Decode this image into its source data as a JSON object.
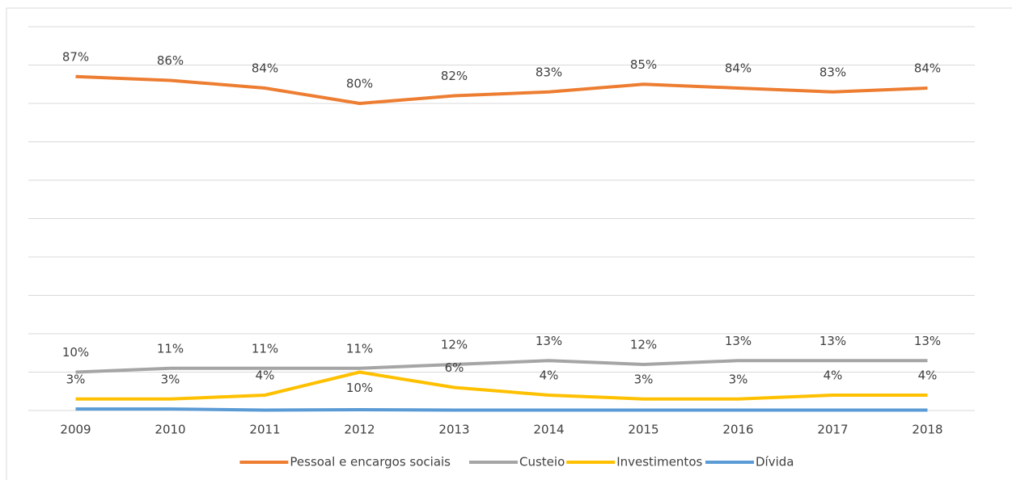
{
  "chart_data": {
    "type": "line",
    "categories": [
      "2009",
      "2010",
      "2011",
      "2012",
      "2013",
      "2014",
      "2015",
      "2016",
      "2017",
      "2018"
    ],
    "series": [
      {
        "name": "Pessoal e encargos sociais",
        "color": "#ED7D31",
        "values": [
          87,
          86,
          84,
          80,
          82,
          83,
          85,
          84,
          83,
          84
        ],
        "value_labels": [
          "87%",
          "86%",
          "84%",
          "80%",
          "82%",
          "83%",
          "85%",
          "84%",
          "83%",
          "84%"
        ]
      },
      {
        "name": "Custeio",
        "color": "#A5A5A5",
        "values": [
          10,
          11,
          11,
          11,
          12,
          13,
          12,
          13,
          13,
          13
        ],
        "value_labels": [
          "10%",
          "11%",
          "11%",
          "11%",
          "12%",
          "13%",
          "12%",
          "13%",
          "13%",
          "13%"
        ]
      },
      {
        "name": "Investimentos",
        "color": "#FFC000",
        "values": [
          3,
          3,
          4,
          10,
          6,
          4,
          3,
          3,
          4,
          4
        ],
        "value_labels": [
          "3%",
          "3%",
          "4%",
          "10%",
          "6%",
          "4%",
          "3%",
          "3%",
          "4%",
          "4%"
        ]
      },
      {
        "name": "Dívida",
        "color": "#5B9BD5",
        "values": [
          0.4,
          0.4,
          0.1,
          0.2,
          0.1,
          0.1,
          0.1,
          0.1,
          0.1,
          0.1
        ]
      }
    ],
    "ylim": [
      0,
      100
    ],
    "yticks": [
      0,
      10,
      20,
      30,
      40,
      50,
      60,
      70,
      80,
      90,
      100
    ],
    "grid": true,
    "legend": "bottom"
  }
}
